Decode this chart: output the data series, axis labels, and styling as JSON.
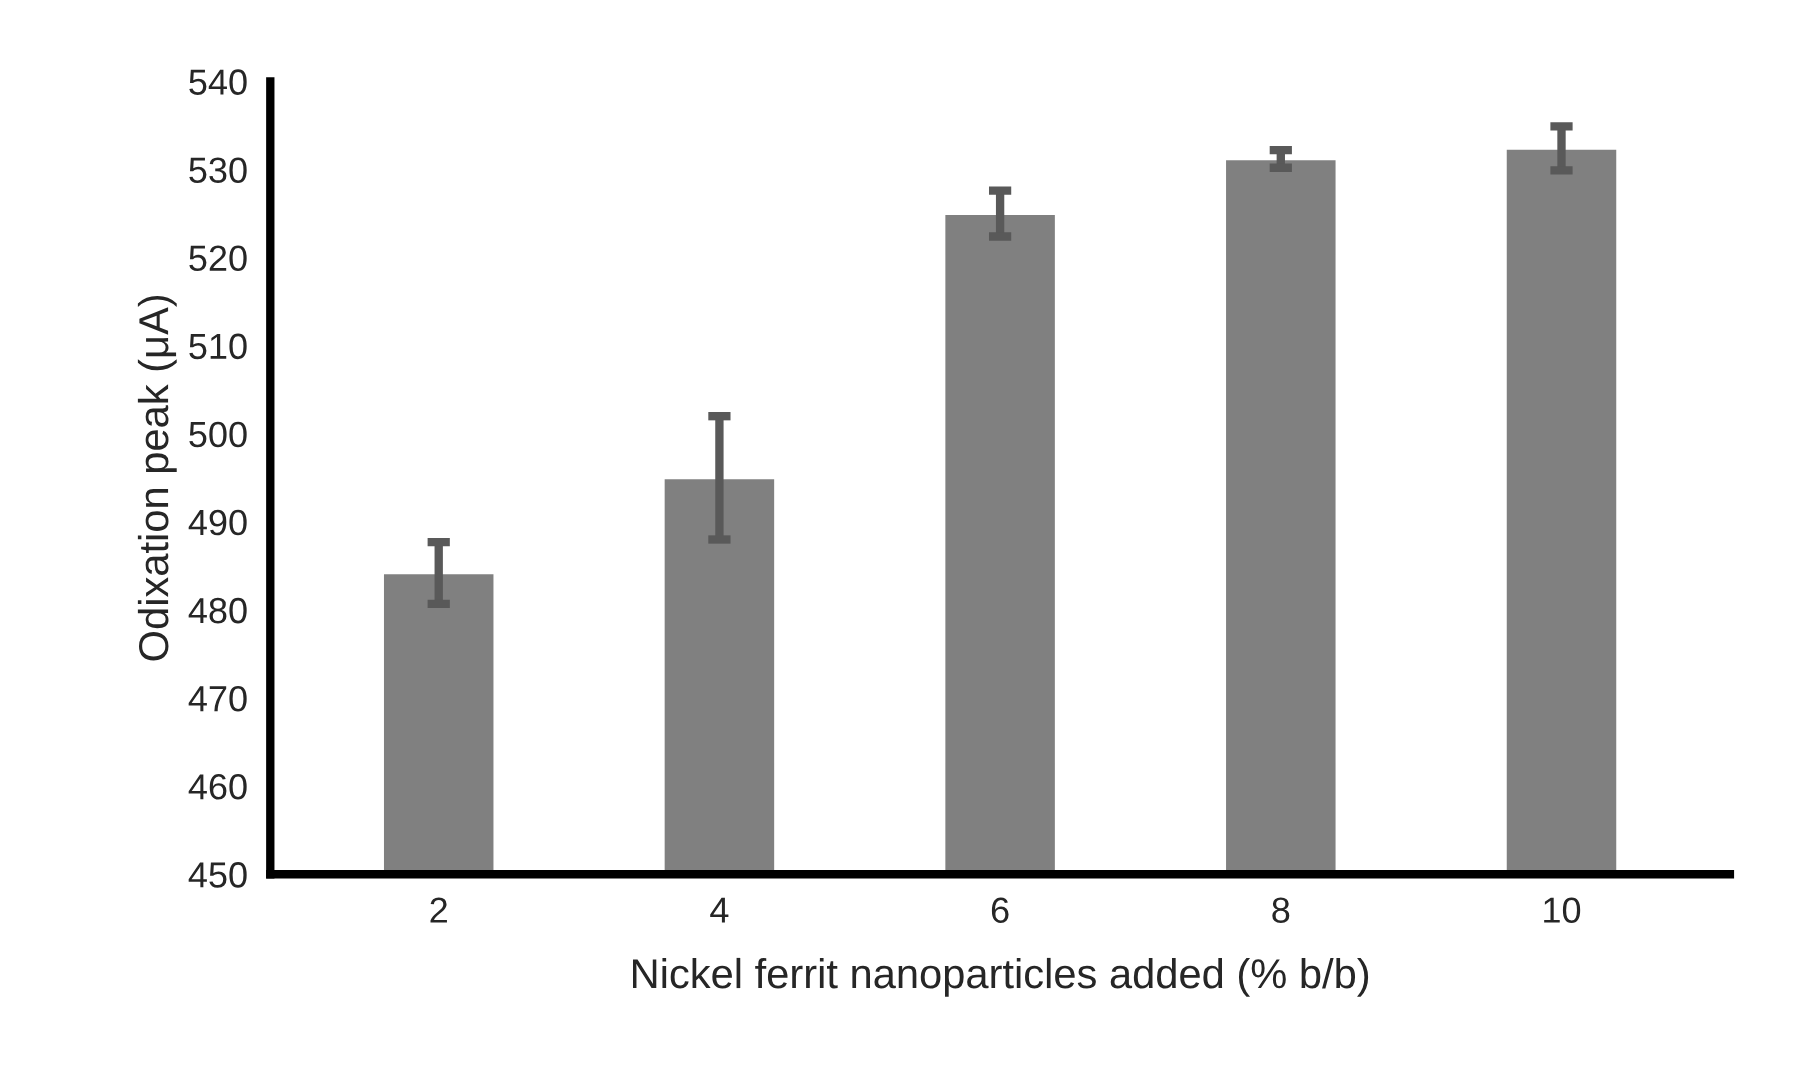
{
  "chart_data": {
    "type": "bar",
    "xlabel": "Nickel ferrit nanoparticles added (% b/b)",
    "ylabel": "Odixation peak (μA)",
    "categories": [
      "2",
      "4",
      "6",
      "8",
      "10"
    ],
    "values": [
      484.2,
      495,
      525,
      531.2,
      532.4
    ],
    "errors": [
      3.5,
      7,
      2.6,
      1,
      2.5
    ],
    "color": "#808080",
    "ylim": [
      450,
      540
    ],
    "yticks": [
      450,
      460,
      470,
      480,
      490,
      500,
      510,
      520,
      530,
      540
    ],
    "grid": false
  }
}
